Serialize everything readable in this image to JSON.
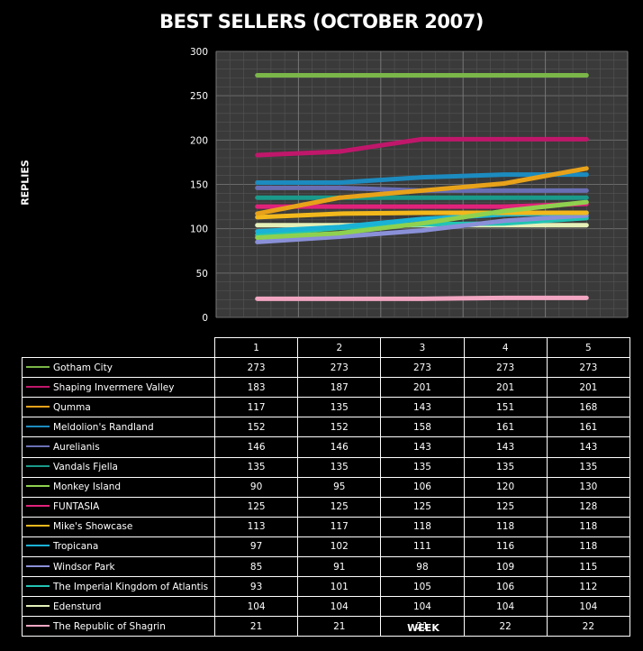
{
  "chart_data": {
    "type": "line",
    "title": "BEST SELLERS (OCTOBER 2007)",
    "xlabel": "WEEK",
    "ylabel": "REPLIES",
    "categories": [
      "1",
      "2",
      "3",
      "4",
      "5"
    ],
    "ylim": [
      0,
      300
    ],
    "yticks": [
      "0",
      "50",
      "100",
      "150",
      "200",
      "250",
      "300"
    ],
    "grid": true,
    "legend_placement": "data table below chart",
    "series": [
      {
        "name": "Gotham City",
        "color": "#7ab648",
        "values": [
          273,
          273,
          273,
          273,
          273
        ]
      },
      {
        "name": "Shaping Invermere Valley",
        "color": "#c0176b",
        "values": [
          183,
          187,
          201,
          201,
          201
        ]
      },
      {
        "name": "Qumma",
        "color": "#e8a21a",
        "values": [
          117,
          135,
          143,
          151,
          168
        ]
      },
      {
        "name": "Meldolion's Randland",
        "color": "#1c8bbf",
        "values": [
          152,
          152,
          158,
          161,
          161
        ]
      },
      {
        "name": "Aurelianis",
        "color": "#6a6fb4",
        "values": [
          146,
          146,
          143,
          143,
          143
        ]
      },
      {
        "name": "Vandals Fjella",
        "color": "#1a9a8a",
        "values": [
          135,
          135,
          135,
          135,
          135
        ]
      },
      {
        "name": "Monkey Island",
        "color": "#8fd14f",
        "values": [
          90,
          95,
          106,
          120,
          130
        ]
      },
      {
        "name": "FUNTASIA",
        "color": "#e0227a",
        "values": [
          125,
          125,
          125,
          125,
          128
        ]
      },
      {
        "name": "Mike's Showcase",
        "color": "#f2b81c",
        "values": [
          113,
          117,
          118,
          118,
          118
        ]
      },
      {
        "name": "Tropicana",
        "color": "#1ab2d6",
        "values": [
          97,
          102,
          111,
          116,
          118
        ]
      },
      {
        "name": "Windsor Park",
        "color": "#8a90d8",
        "values": [
          85,
          91,
          98,
          109,
          115
        ]
      },
      {
        "name": "The Imperial Kingdom of Atlantis",
        "color": "#22c4b4",
        "values": [
          93,
          101,
          105,
          106,
          112
        ]
      },
      {
        "name": "Edensturd",
        "color": "#e4f0b8",
        "values": [
          104,
          104,
          104,
          104,
          104
        ]
      },
      {
        "name": "The Republic of Shagrin",
        "color": "#f2a6c2",
        "values": [
          21,
          21,
          21,
          22,
          22
        ]
      }
    ]
  }
}
